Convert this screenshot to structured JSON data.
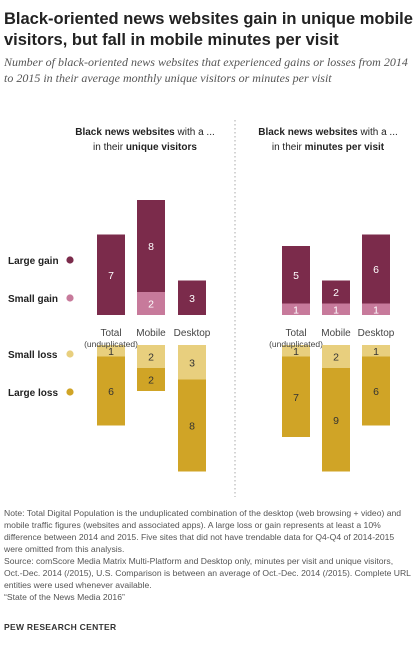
{
  "title": "Black-oriented news websites gain in unique mobile visitors, but fall in mobile minutes per visit",
  "subtitle": "Number of black-oriented news websites that experienced gains or losses from 2014 to 2015 in their average monthly unique visitors or minutes per visit",
  "legend": [
    {
      "label": "Large gain",
      "color": "#7b2b4b"
    },
    {
      "label": "Small gain",
      "color": "#c77a9b"
    },
    {
      "label": "Small loss",
      "color": "#e8cf7e"
    },
    {
      "label": "Large loss",
      "color": "#d0a426"
    }
  ],
  "panels": [
    {
      "prefix": "Black news websites",
      "mid": " with a ...",
      "line2_pre": "in their ",
      "line2_bold": "unique visitors"
    },
    {
      "prefix": "Black news websites",
      "mid": " with a ...",
      "line2_pre": "in their ",
      "line2_bold": "minutes per visit"
    }
  ],
  "category_labels": {
    "total": "Total",
    "total_sub": "(unduplicated)",
    "mobile": "Mobile",
    "desktop": "Desktop"
  },
  "chart_data": [
    {
      "type": "bar",
      "title": "Unique visitors",
      "categories": [
        "Total",
        "Mobile",
        "Desktop"
      ],
      "series": [
        {
          "name": "Large gain",
          "values": [
            7,
            8,
            3
          ]
        },
        {
          "name": "Small gain",
          "values": [
            0,
            2,
            0
          ]
        },
        {
          "name": "Small loss",
          "values": [
            1,
            2,
            3
          ]
        },
        {
          "name": "Large loss",
          "values": [
            6,
            2,
            8
          ]
        }
      ]
    },
    {
      "type": "bar",
      "title": "Minutes per visit",
      "categories": [
        "Total",
        "Mobile",
        "Desktop"
      ],
      "series": [
        {
          "name": "Large gain",
          "values": [
            5,
            2,
            6
          ]
        },
        {
          "name": "Small gain",
          "values": [
            1,
            1,
            1
          ]
        },
        {
          "name": "Small loss",
          "values": [
            1,
            2,
            1
          ]
        },
        {
          "name": "Large loss",
          "values": [
            7,
            9,
            6
          ]
        }
      ]
    }
  ],
  "note": "Note: Total Digital Population is the unduplicated combination of the desktop (web browsing + video) and mobile traffic figures (websites and associated apps). A large loss or gain represents at least a 10% difference between 2014 and 2015. Five sites that did not have trendable data for Q4-Q4 of 2014-2015 were omitted from this analysis.",
  "source": "Source: comScore Media Matrix Multi-Platform and Desktop only, minutes per visit and unique visitors, Oct.-Dec. 2014 (/2015), U.S. Comparison is between an average of Oct.-Dec. 2014 (/2015). Complete URL entities were used whenever available.",
  "report": "“State of the News Media 2016”",
  "org": "PEW RESEARCH CENTER"
}
